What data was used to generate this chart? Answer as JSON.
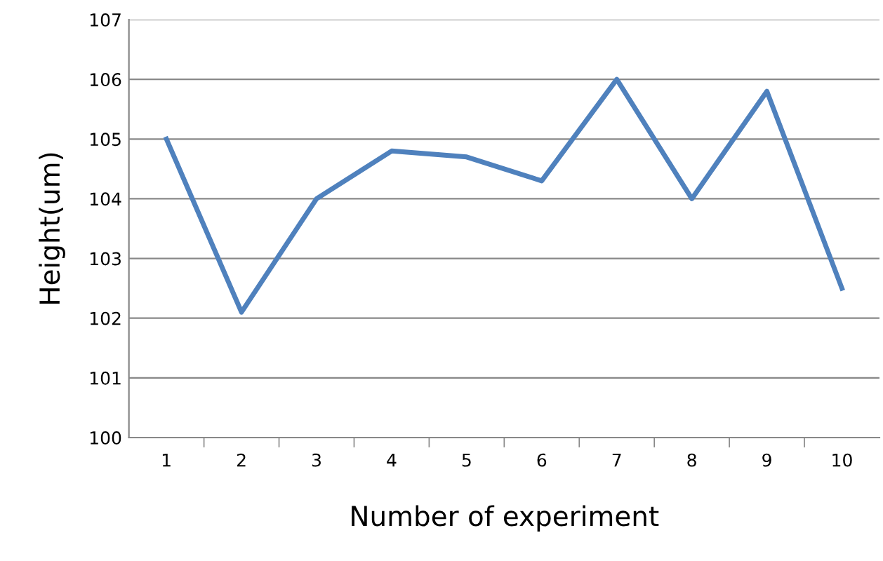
{
  "chart_data": {
    "type": "line",
    "xlabel": "Number of experiment",
    "ylabel": "Height(um)",
    "categories": [
      "1",
      "2",
      "3",
      "4",
      "5",
      "6",
      "7",
      "8",
      "9",
      "10"
    ],
    "series": [
      {
        "color": "#4f81bd",
        "values": [
          105,
          102.1,
          104,
          104.8,
          104.7,
          104.3,
          106,
          104,
          105.8,
          102.5
        ]
      }
    ],
    "ylim": [
      100,
      107
    ],
    "yticks": [
      100,
      101,
      102,
      103,
      104,
      105,
      106,
      107
    ],
    "grid": "y",
    "legend": false,
    "marker": "none",
    "line_style": "solid"
  }
}
